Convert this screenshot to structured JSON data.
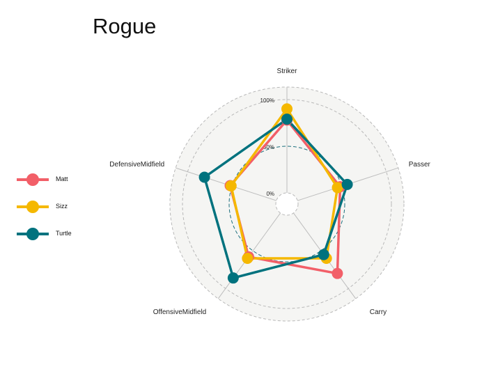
{
  "chart_data": {
    "type": "radar",
    "title": "Rogue",
    "axes": [
      "Striker",
      "Passer",
      "Carry",
      "OffensiveMidfield",
      "DefensiveMidfield"
    ],
    "grid_labels": [
      "0%",
      "50%",
      "100%"
    ],
    "series": [
      {
        "name": "Matt",
        "color": "#f25f68",
        "values": [
          0.78,
          0.48,
          0.8,
          0.58,
          0.52
        ]
      },
      {
        "name": "Sizz",
        "color": "#f5b800",
        "values": [
          0.9,
          0.45,
          0.6,
          0.6,
          0.51
        ]
      },
      {
        "name": "Turtle",
        "color": "#00727e",
        "values": [
          0.79,
          0.56,
          0.55,
          0.86,
          0.81
        ]
      }
    ],
    "legend_position": "left",
    "grid": true
  }
}
